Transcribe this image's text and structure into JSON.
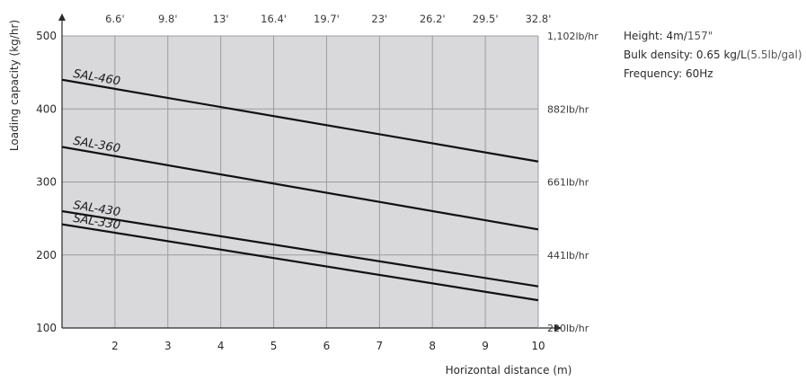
{
  "chart_data": {
    "type": "line",
    "xlabel": "Horizontal distance (m)",
    "ylabel": "Loading capacity (kg/hr)",
    "xlim": [
      1,
      10
    ],
    "ylim": [
      100,
      500
    ],
    "x_ticks": [
      2,
      3,
      4,
      5,
      6,
      7,
      8,
      9,
      10
    ],
    "y_ticks": [
      100,
      200,
      300,
      400,
      500
    ],
    "top_ticks": [
      {
        "x": 2,
        "label": "6.6'"
      },
      {
        "x": 3,
        "label": "9.8'"
      },
      {
        "x": 4,
        "label": "13'"
      },
      {
        "x": 5,
        "label": "16.4'"
      },
      {
        "x": 6,
        "label": "19.7'"
      },
      {
        "x": 7,
        "label": "23'"
      },
      {
        "x": 8,
        "label": "26.2'"
      },
      {
        "x": 9,
        "label": "29.5'"
      },
      {
        "x": 10,
        "label": "32.8'"
      }
    ],
    "right_ticks": [
      {
        "y": 100,
        "label": "220lb/hr"
      },
      {
        "y": 200,
        "label": "441lb/hr"
      },
      {
        "y": 300,
        "label": "661lb/hr"
      },
      {
        "y": 400,
        "label": "882lb/hr"
      },
      {
        "y": 500,
        "label": "1,102lb/hr"
      }
    ],
    "grid": true,
    "series": [
      {
        "name": "SAL-460",
        "x": [
          1,
          10
        ],
        "values": [
          440,
          328
        ]
      },
      {
        "name": "SAL-360",
        "x": [
          1,
          10
        ],
        "values": [
          348,
          235
        ]
      },
      {
        "name": "SAL-430",
        "x": [
          1,
          10
        ],
        "values": [
          260,
          157
        ]
      },
      {
        "name": "SAL-330",
        "x": [
          1,
          10
        ],
        "values": [
          242,
          138
        ]
      }
    ]
  },
  "specs": {
    "height_label": "Height: ",
    "height_metric": "4m/",
    "height_imperial": "157\"",
    "density_label": "Bulk density: ",
    "density_metric": "0.65 kg/L",
    "density_imperial": "(5.5lb/gal)",
    "frequency": "Frequency: 60Hz"
  }
}
